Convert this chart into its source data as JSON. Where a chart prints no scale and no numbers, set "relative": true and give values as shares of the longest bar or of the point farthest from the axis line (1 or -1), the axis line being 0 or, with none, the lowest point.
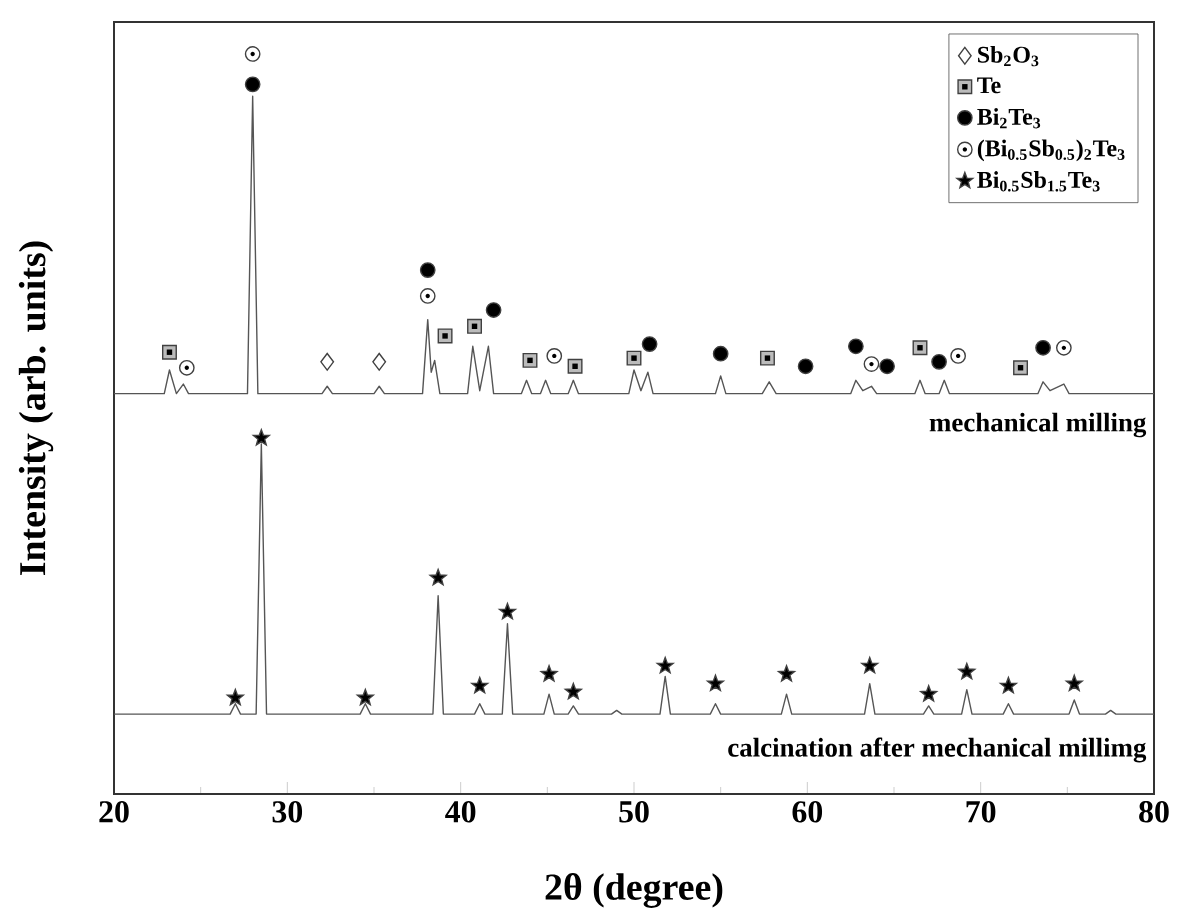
{
  "chart_data": {
    "type": "line",
    "relative": true,
    "xlabel": "2θ (degree)",
    "ylabel": "Intensity (arb. units)",
    "xlim": [
      20,
      80
    ],
    "xticks": [
      20,
      30,
      40,
      50,
      60,
      70,
      80
    ],
    "legend": "top right",
    "annotations": [
      "mechanical milling",
      "calcination after mechanical millimg"
    ],
    "series": [
      {
        "color": "#555555",
        "line_style": "solid",
        "x": [
          20,
          22.9,
          23.2,
          23.6,
          24.0,
          24.3,
          27.7,
          28.0,
          28.3,
          32.0,
          32.3,
          32.6,
          35.0,
          35.3,
          35.6,
          37.8,
          38.1,
          38.3,
          38.5,
          38.8,
          40.4,
          40.7,
          41.1,
          41.6,
          41.9,
          43.5,
          43.8,
          44.1,
          44.6,
          44.9,
          45.2,
          46.2,
          46.5,
          46.8,
          49.7,
          50.0,
          50.4,
          50.8,
          51.1,
          54.7,
          55.0,
          55.3,
          57.4,
          57.8,
          58.2,
          62.5,
          62.8,
          63.2,
          63.7,
          64.0,
          66.2,
          66.5,
          66.8,
          67.6,
          67.9,
          68.2,
          73.3,
          73.6,
          74.0,
          74.8,
          75.1,
          80
        ],
        "values": [
          0.541,
          0.541,
          0.573,
          0.541,
          0.554,
          0.541,
          0.541,
          0.943,
          0.541,
          0.541,
          0.551,
          0.541,
          0.541,
          0.551,
          0.541,
          0.541,
          0.641,
          0.57,
          0.586,
          0.541,
          0.541,
          0.605,
          0.545,
          0.605,
          0.541,
          0.541,
          0.559,
          0.541,
          0.541,
          0.559,
          0.541,
          0.541,
          0.559,
          0.541,
          0.541,
          0.573,
          0.545,
          0.57,
          0.541,
          0.541,
          0.565,
          0.541,
          0.541,
          0.557,
          0.541,
          0.541,
          0.559,
          0.545,
          0.551,
          0.541,
          0.541,
          0.559,
          0.541,
          0.541,
          0.559,
          0.541,
          0.541,
          0.557,
          0.545,
          0.554,
          0.541,
          0.541
        ]
      },
      {
        "color": "#555555",
        "line_style": "solid",
        "x": [
          20,
          26.7,
          27.0,
          27.3,
          28.2,
          28.5,
          28.8,
          34.2,
          34.5,
          34.8,
          38.4,
          38.7,
          39.0,
          40.8,
          41.1,
          41.4,
          42.4,
          42.7,
          43.0,
          44.8,
          45.1,
          45.4,
          46.2,
          46.5,
          46.8,
          48.7,
          49.0,
          49.3,
          51.5,
          51.8,
          52.1,
          54.4,
          54.7,
          55.0,
          58.5,
          58.8,
          59.1,
          63.3,
          63.6,
          63.9,
          66.7,
          67.0,
          67.3,
          68.9,
          69.2,
          69.5,
          71.3,
          71.6,
          71.9,
          75.1,
          75.4,
          75.7,
          77.2,
          77.5,
          77.8,
          80
        ],
        "values": [
          0.108,
          0.108,
          0.122,
          0.108,
          0.108,
          0.473,
          0.108,
          0.108,
          0.122,
          0.108,
          0.108,
          0.268,
          0.108,
          0.108,
          0.122,
          0.108,
          0.108,
          0.23,
          0.108,
          0.108,
          0.135,
          0.108,
          0.108,
          0.119,
          0.108,
          0.108,
          0.113,
          0.108,
          0.108,
          0.159,
          0.108,
          0.108,
          0.122,
          0.108,
          0.108,
          0.135,
          0.108,
          0.108,
          0.149,
          0.108,
          0.108,
          0.119,
          0.108,
          0.108,
          0.141,
          0.108,
          0.108,
          0.122,
          0.108,
          0.108,
          0.127,
          0.108,
          0.108,
          0.113,
          0.108,
          0.108
        ]
      },
      {
        "type": "scatter",
        "name": "Sb$_{2}$O$_{3}$",
        "color": "#ffffff",
        "marker": "diamond",
        "x": [
          32.3,
          35.3
        ],
        "values": [
          0.584,
          0.584
        ]
      },
      {
        "type": "scatter",
        "name": "Te",
        "color": "#bbbbbb",
        "marker": "square",
        "x": [
          23.2,
          39.1,
          40.8,
          44.0,
          46.6,
          50.0,
          57.7,
          66.5,
          72.3
        ],
        "values": [
          0.597,
          0.619,
          0.632,
          0.586,
          0.578,
          0.589,
          0.589,
          0.603,
          0.576
        ]
      },
      {
        "type": "scatter",
        "name": "Bi$_{2}$Te$_{3}$",
        "color": "#000000",
        "marker": "circle",
        "x": [
          28.0,
          38.1,
          41.9,
          50.9,
          55.0,
          59.9,
          62.8,
          64.6,
          67.6,
          73.6
        ],
        "values": [
          0.959,
          0.708,
          0.654,
          0.608,
          0.595,
          0.578,
          0.605,
          0.578,
          0.584,
          0.603
        ]
      },
      {
        "type": "scatter",
        "name": "(Bi$_{0.5}$Sb$_{0.5}$)$_{2}$Te$_{3}$",
        "color": "#ffffff",
        "marker": "circle",
        "x": [
          24.2,
          28.0,
          38.1,
          45.4,
          63.7,
          68.7,
          74.8
        ],
        "values": [
          0.576,
          1.0,
          0.673,
          0.592,
          0.581,
          0.592,
          0.603
        ]
      },
      {
        "type": "scatter",
        "name": "Bi$_{0.5}$Sb$_{1.5}$Te$_{3}$",
        "color": "#000000",
        "marker": "star",
        "x": [
          27.0,
          28.5,
          34.5,
          38.7,
          41.1,
          42.7,
          45.1,
          46.5,
          51.8,
          54.7,
          58.8,
          63.6,
          67.0,
          69.2,
          71.6,
          75.4
        ],
        "values": [
          0.13,
          0.481,
          0.13,
          0.292,
          0.146,
          0.246,
          0.162,
          0.138,
          0.173,
          0.149,
          0.162,
          0.173,
          0.135,
          0.165,
          0.146,
          0.149
        ]
      }
    ]
  }
}
